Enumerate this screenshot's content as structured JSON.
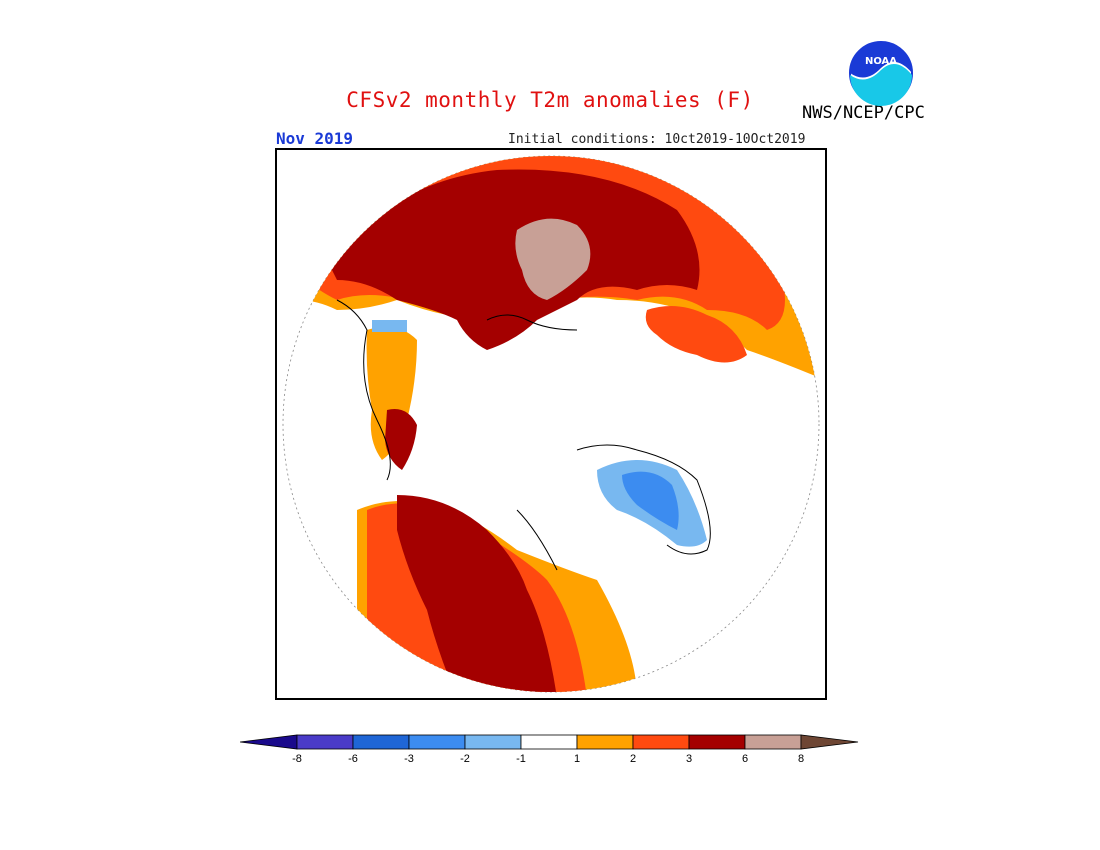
{
  "title": "CFSv2 monthly T2m anomalies (F)",
  "valid_month": "Nov 2019",
  "initial_conditions": "Initial conditions: 10ct2019-10Oct2019",
  "agency": "NWS/NCEP/CPC",
  "logo": {
    "text": "NOAA",
    "icon": "noaa-logo"
  },
  "map": {
    "projection": "north-polar-stereographic",
    "regions": [
      {
        "name": "Siberia / northern Asia",
        "category": "3 to 6"
      },
      {
        "name": "Kara Sea area",
        "category": "6 to 8"
      },
      {
        "name": "Alaska / western Canada",
        "category": "3 to 6"
      },
      {
        "name": "Hudson Bay",
        "category": "-3 to -2"
      }
    ]
  },
  "colorbar": {
    "ticks": [
      "-8",
      "-6",
      "-3",
      "-2",
      "-1",
      "1",
      "2",
      "3",
      "6",
      "8"
    ],
    "colors": {
      "lt_-8": "#1a0a8c",
      "-8_-6": "#4a3bc8",
      "-6_-3": "#1f66d6",
      "-3_-2": "#3c8cf0",
      "-2_-1": "#78b8f0",
      "-1_1": "#ffffff",
      "1_2": "#ffa200",
      "2_3": "#ff4a10",
      "3_6": "#a40000",
      "6_8": "#c8a096",
      "gt_8": "#6e4634"
    }
  }
}
